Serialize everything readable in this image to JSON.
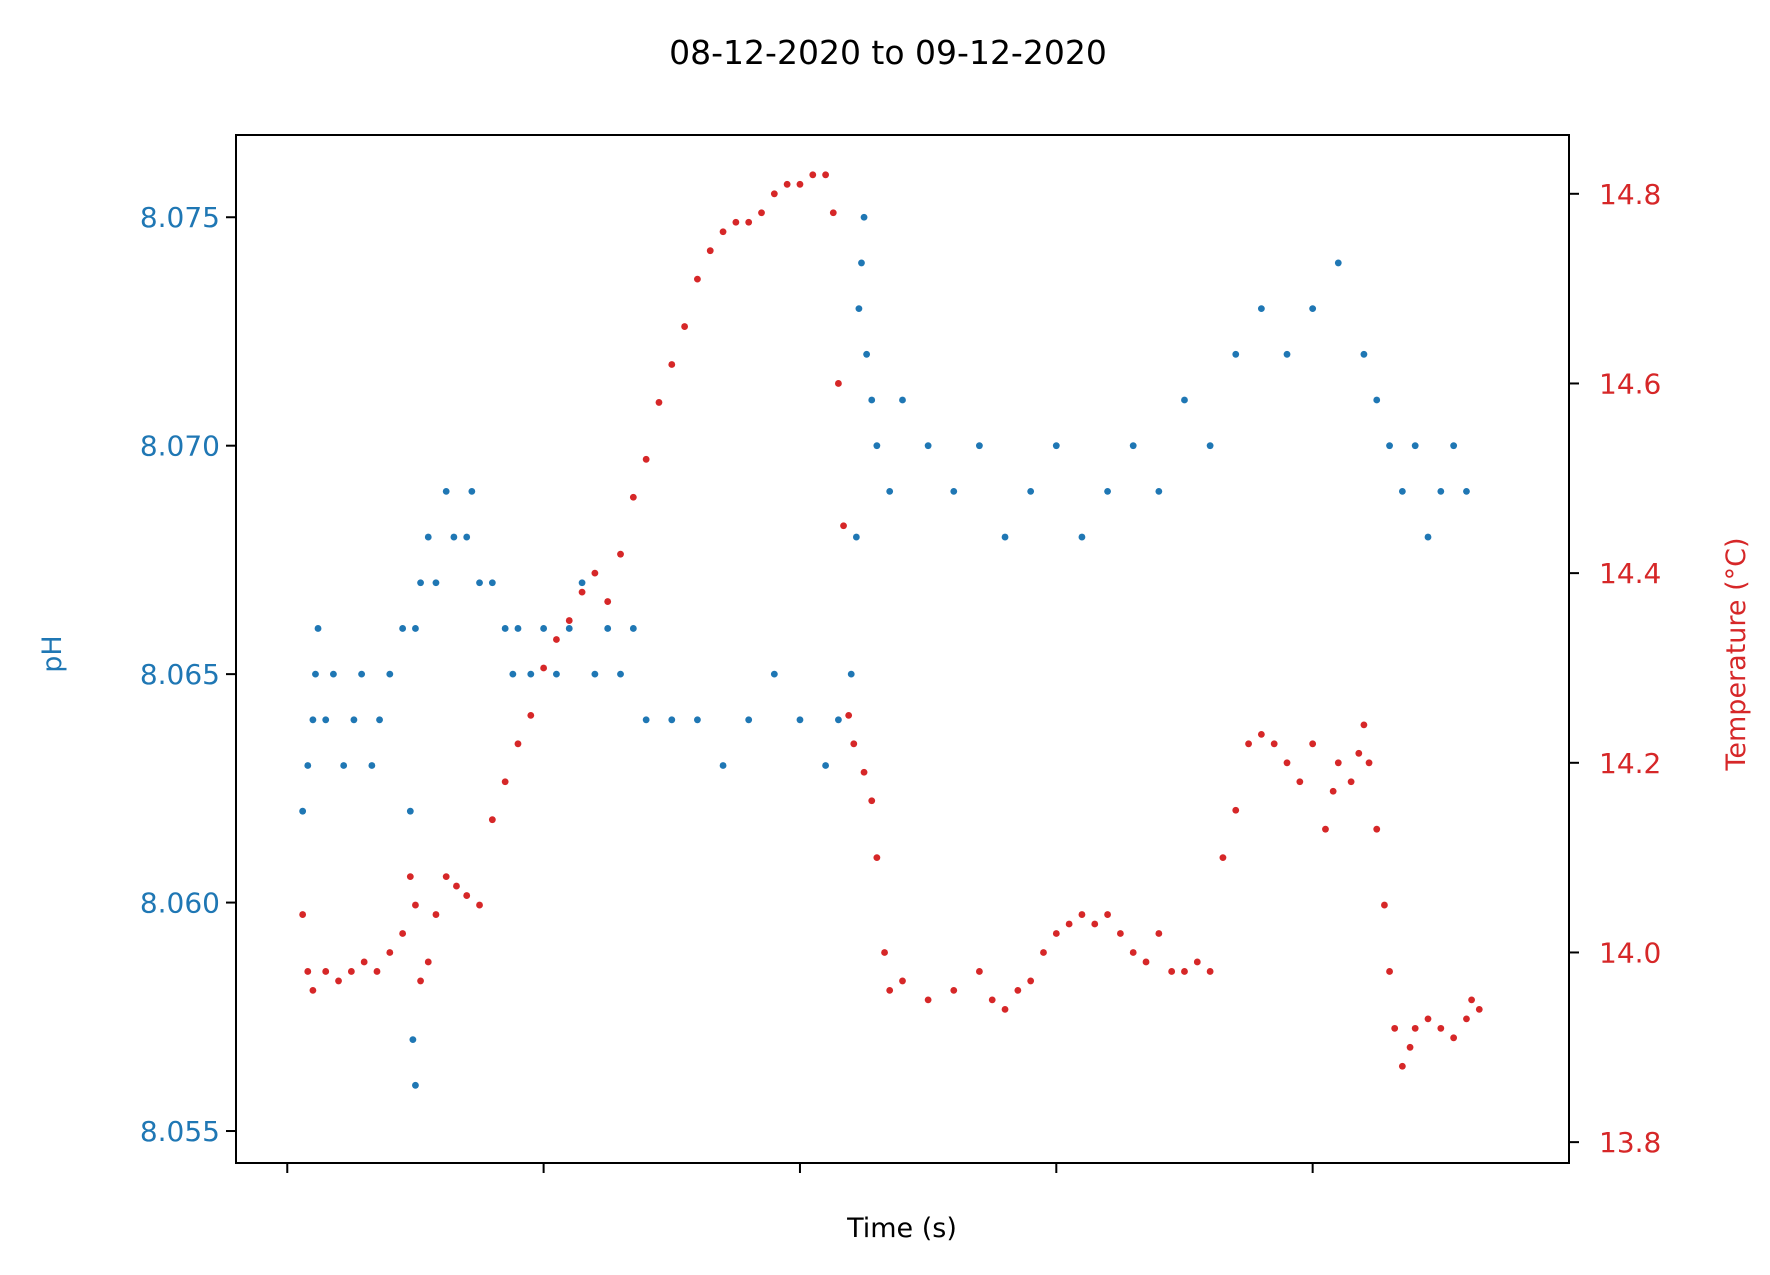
{
  "chart_data": {
    "type": "scatter",
    "title": "08-12-2020 to 09-12-2020",
    "xlabel": "Time (s)",
    "ylabel_left": "pH",
    "ylabel_right": "Temperature (°C)",
    "ylim_left": [
      8.0543,
      8.0768
    ],
    "ylim_right": [
      13.778,
      14.862
    ],
    "xlim": [
      -0.2,
      5.0
    ],
    "x_ticks": [
      0,
      1,
      2,
      3,
      4
    ],
    "x_tick_labels": [
      "",
      "",
      "",
      "",
      ""
    ],
    "y_ticks_left": [
      8.055,
      8.06,
      8.065,
      8.07,
      8.075
    ],
    "y_tick_labels_left": [
      "8.055",
      "8.060",
      "8.065",
      "8.070",
      "8.075"
    ],
    "y_ticks_right": [
      13.8,
      14.0,
      14.2,
      14.4,
      14.6,
      14.8
    ],
    "y_tick_labels_right": [
      "13.8",
      "14.0",
      "14.2",
      "14.4",
      "14.6",
      "14.8"
    ],
    "grid": false,
    "colors": {
      "ph": "#1f77b4",
      "temperature": "#d62728"
    },
    "series": [
      {
        "axis": "left",
        "color": "#1f77b4",
        "points": [
          [
            0.06,
            8.062
          ],
          [
            0.08,
            8.063
          ],
          [
            0.1,
            8.064
          ],
          [
            0.11,
            8.065
          ],
          [
            0.12,
            8.066
          ],
          [
            0.15,
            8.064
          ],
          [
            0.18,
            8.065
          ],
          [
            0.22,
            8.063
          ],
          [
            0.26,
            8.064
          ],
          [
            0.29,
            8.065
          ],
          [
            0.33,
            8.063
          ],
          [
            0.36,
            8.064
          ],
          [
            0.4,
            8.065
          ],
          [
            0.45,
            8.066
          ],
          [
            0.5,
            8.066
          ],
          [
            0.48,
            8.062
          ],
          [
            0.49,
            8.057
          ],
          [
            0.5,
            8.056
          ],
          [
            0.52,
            8.067
          ],
          [
            0.55,
            8.068
          ],
          [
            0.58,
            8.067
          ],
          [
            0.62,
            8.069
          ],
          [
            0.65,
            8.068
          ],
          [
            0.7,
            8.068
          ],
          [
            0.72,
            8.069
          ],
          [
            0.75,
            8.067
          ],
          [
            0.8,
            8.067
          ],
          [
            0.85,
            8.066
          ],
          [
            0.9,
            8.066
          ],
          [
            0.88,
            8.065
          ],
          [
            0.95,
            8.065
          ],
          [
            1.0,
            8.066
          ],
          [
            1.05,
            8.065
          ],
          [
            1.1,
            8.066
          ],
          [
            1.15,
            8.067
          ],
          [
            1.2,
            8.065
          ],
          [
            1.25,
            8.066
          ],
          [
            1.3,
            8.065
          ],
          [
            1.35,
            8.066
          ],
          [
            1.4,
            8.064
          ],
          [
            1.5,
            8.064
          ],
          [
            1.6,
            8.064
          ],
          [
            1.7,
            8.063
          ],
          [
            1.8,
            8.064
          ],
          [
            1.9,
            8.065
          ],
          [
            2.0,
            8.064
          ],
          [
            2.1,
            8.063
          ],
          [
            2.15,
            8.064
          ],
          [
            2.2,
            8.065
          ],
          [
            2.22,
            8.068
          ],
          [
            2.23,
            8.073
          ],
          [
            2.24,
            8.074
          ],
          [
            2.25,
            8.075
          ],
          [
            2.26,
            8.072
          ],
          [
            2.28,
            8.071
          ],
          [
            2.3,
            8.07
          ],
          [
            2.35,
            8.069
          ],
          [
            2.4,
            8.071
          ],
          [
            2.5,
            8.07
          ],
          [
            2.6,
            8.069
          ],
          [
            2.7,
            8.07
          ],
          [
            2.8,
            8.068
          ],
          [
            2.9,
            8.069
          ],
          [
            3.0,
            8.07
          ],
          [
            3.1,
            8.068
          ],
          [
            3.2,
            8.069
          ],
          [
            3.3,
            8.07
          ],
          [
            3.4,
            8.069
          ],
          [
            3.5,
            8.071
          ],
          [
            3.6,
            8.07
          ],
          [
            3.7,
            8.072
          ],
          [
            3.8,
            8.073
          ],
          [
            3.9,
            8.072
          ],
          [
            4.0,
            8.073
          ],
          [
            4.1,
            8.074
          ],
          [
            4.2,
            8.072
          ],
          [
            4.25,
            8.071
          ],
          [
            4.3,
            8.07
          ],
          [
            4.35,
            8.069
          ],
          [
            4.4,
            8.07
          ],
          [
            4.45,
            8.068
          ],
          [
            4.5,
            8.069
          ],
          [
            4.55,
            8.07
          ],
          [
            4.6,
            8.069
          ]
        ]
      },
      {
        "axis": "right",
        "color": "#d62728",
        "points": [
          [
            0.06,
            14.04
          ],
          [
            0.08,
            13.98
          ],
          [
            0.1,
            13.96
          ],
          [
            0.15,
            13.98
          ],
          [
            0.2,
            13.97
          ],
          [
            0.25,
            13.98
          ],
          [
            0.3,
            13.99
          ],
          [
            0.35,
            13.98
          ],
          [
            0.4,
            14.0
          ],
          [
            0.45,
            14.02
          ],
          [
            0.48,
            14.08
          ],
          [
            0.5,
            14.05
          ],
          [
            0.52,
            13.97
          ],
          [
            0.55,
            13.99
          ],
          [
            0.58,
            14.04
          ],
          [
            0.62,
            14.08
          ],
          [
            0.66,
            14.07
          ],
          [
            0.7,
            14.06
          ],
          [
            0.75,
            14.05
          ],
          [
            0.8,
            14.14
          ],
          [
            0.85,
            14.18
          ],
          [
            0.9,
            14.22
          ],
          [
            0.95,
            14.25
          ],
          [
            1.0,
            14.3
          ],
          [
            1.05,
            14.33
          ],
          [
            1.1,
            14.35
          ],
          [
            1.15,
            14.38
          ],
          [
            1.2,
            14.4
          ],
          [
            1.25,
            14.37
          ],
          [
            1.3,
            14.42
          ],
          [
            1.35,
            14.48
          ],
          [
            1.4,
            14.52
          ],
          [
            1.45,
            14.58
          ],
          [
            1.5,
            14.62
          ],
          [
            1.55,
            14.66
          ],
          [
            1.6,
            14.71
          ],
          [
            1.65,
            14.74
          ],
          [
            1.7,
            14.76
          ],
          [
            1.75,
            14.77
          ],
          [
            1.8,
            14.77
          ],
          [
            1.85,
            14.78
          ],
          [
            1.9,
            14.8
          ],
          [
            1.95,
            14.81
          ],
          [
            2.0,
            14.81
          ],
          [
            2.05,
            14.82
          ],
          [
            2.1,
            14.82
          ],
          [
            2.13,
            14.78
          ],
          [
            2.15,
            14.6
          ],
          [
            2.17,
            14.45
          ],
          [
            2.19,
            14.25
          ],
          [
            2.21,
            14.22
          ],
          [
            2.25,
            14.19
          ],
          [
            2.28,
            14.16
          ],
          [
            2.3,
            14.1
          ],
          [
            2.33,
            14.0
          ],
          [
            2.35,
            13.96
          ],
          [
            2.4,
            13.97
          ],
          [
            2.5,
            13.95
          ],
          [
            2.6,
            13.96
          ],
          [
            2.7,
            13.98
          ],
          [
            2.75,
            13.95
          ],
          [
            2.8,
            13.94
          ],
          [
            2.85,
            13.96
          ],
          [
            2.9,
            13.97
          ],
          [
            2.95,
            14.0
          ],
          [
            3.0,
            14.02
          ],
          [
            3.05,
            14.03
          ],
          [
            3.1,
            14.04
          ],
          [
            3.15,
            14.03
          ],
          [
            3.2,
            14.04
          ],
          [
            3.25,
            14.02
          ],
          [
            3.3,
            14.0
          ],
          [
            3.35,
            13.99
          ],
          [
            3.4,
            14.02
          ],
          [
            3.45,
            13.98
          ],
          [
            3.5,
            13.98
          ],
          [
            3.55,
            13.99
          ],
          [
            3.6,
            13.98
          ],
          [
            3.65,
            14.1
          ],
          [
            3.7,
            14.15
          ],
          [
            3.75,
            14.22
          ],
          [
            3.8,
            14.23
          ],
          [
            3.85,
            14.22
          ],
          [
            3.9,
            14.2
          ],
          [
            3.95,
            14.18
          ],
          [
            4.0,
            14.22
          ],
          [
            4.05,
            14.13
          ],
          [
            4.08,
            14.17
          ],
          [
            4.1,
            14.2
          ],
          [
            4.15,
            14.18
          ],
          [
            4.18,
            14.21
          ],
          [
            4.2,
            14.24
          ],
          [
            4.22,
            14.2
          ],
          [
            4.25,
            14.13
          ],
          [
            4.28,
            14.05
          ],
          [
            4.3,
            13.98
          ],
          [
            4.32,
            13.92
          ],
          [
            4.35,
            13.88
          ],
          [
            4.38,
            13.9
          ],
          [
            4.4,
            13.92
          ],
          [
            4.45,
            13.93
          ],
          [
            4.5,
            13.92
          ],
          [
            4.55,
            13.91
          ],
          [
            4.6,
            13.93
          ],
          [
            4.62,
            13.95
          ],
          [
            4.65,
            13.94
          ]
        ]
      }
    ]
  }
}
